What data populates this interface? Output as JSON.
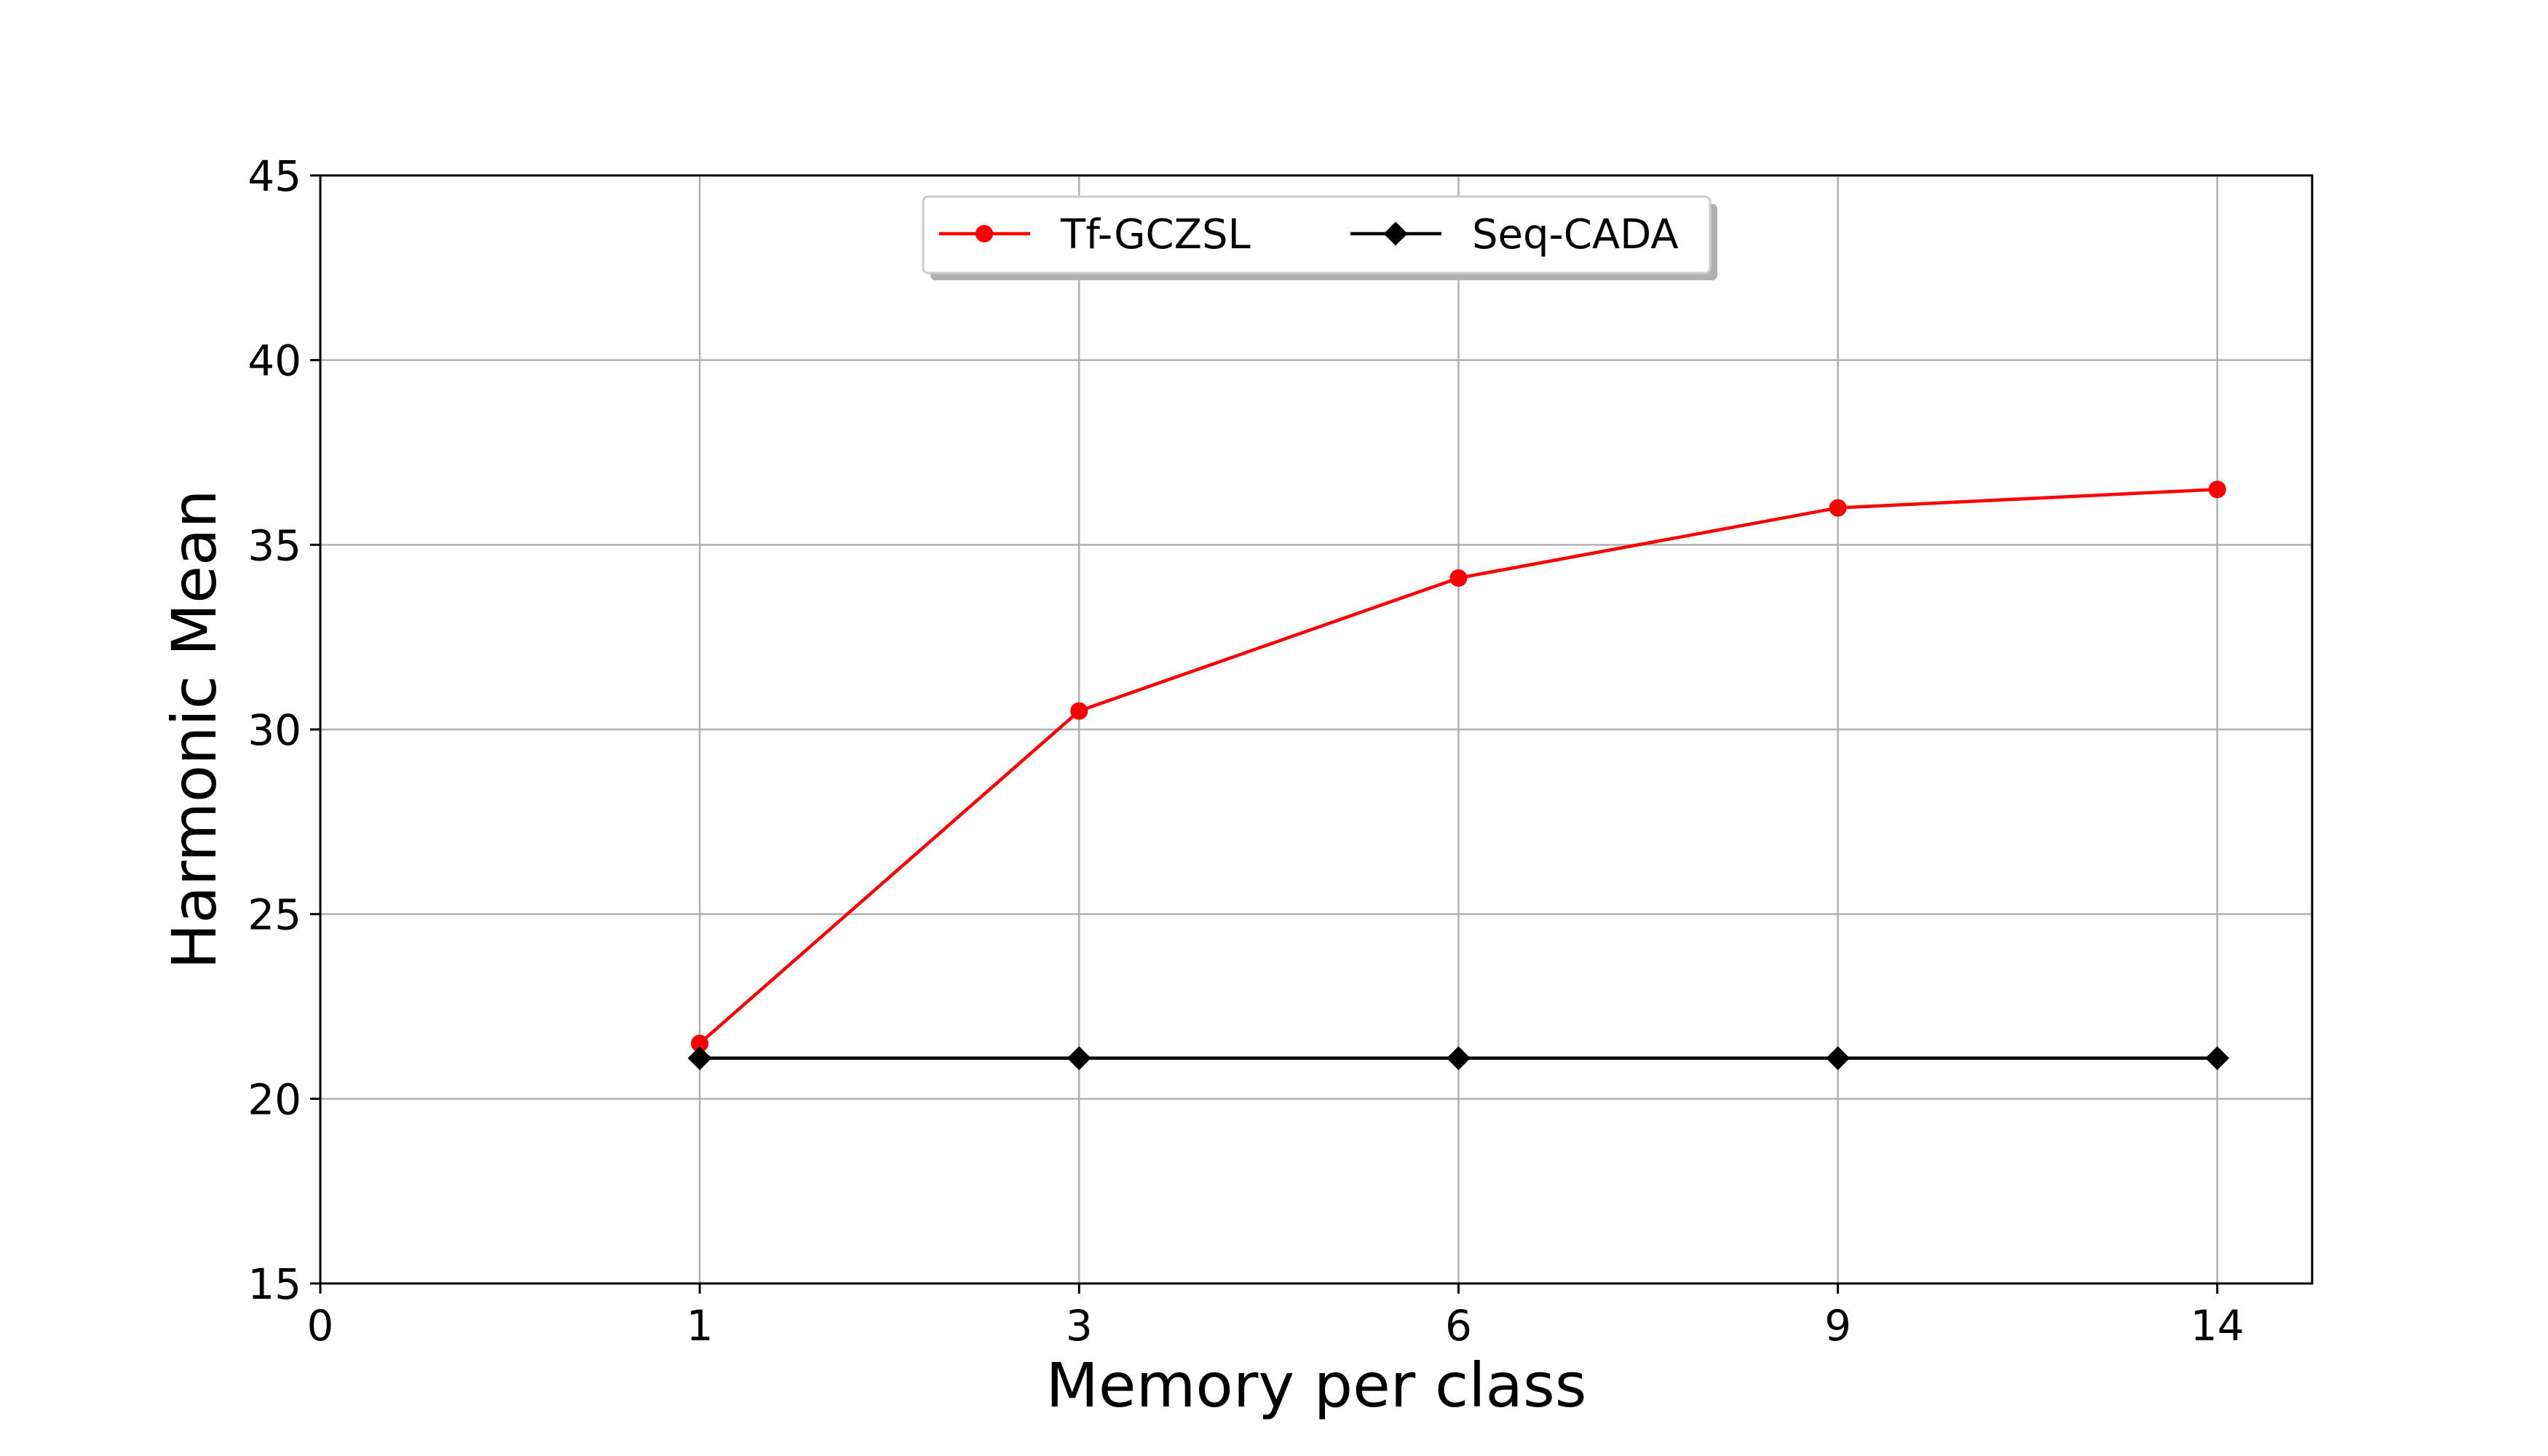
{
  "chart_data": {
    "type": "line",
    "title": "",
    "xlabel": "Memory per class",
    "ylabel": "Harmonic Mean",
    "categories": [
      "0",
      "1",
      "3",
      "6",
      "9",
      "14"
    ],
    "ylim": [
      15,
      45
    ],
    "yticks": [
      15,
      20,
      25,
      30,
      35,
      40,
      45
    ],
    "grid": true,
    "legend_position": "upper center",
    "series": [
      {
        "name": "Tf-GCZSL",
        "color": "#ff0000",
        "marker": "circle",
        "x": [
          "1",
          "3",
          "6",
          "9",
          "14"
        ],
        "values": [
          21.5,
          30.5,
          34.1,
          36.0,
          36.5
        ]
      },
      {
        "name": "Seq-CADA",
        "color": "#000000",
        "marker": "diamond",
        "x": [
          "1",
          "3",
          "6",
          "9",
          "14"
        ],
        "values": [
          21.1,
          21.1,
          21.1,
          21.1,
          21.1
        ]
      }
    ]
  }
}
